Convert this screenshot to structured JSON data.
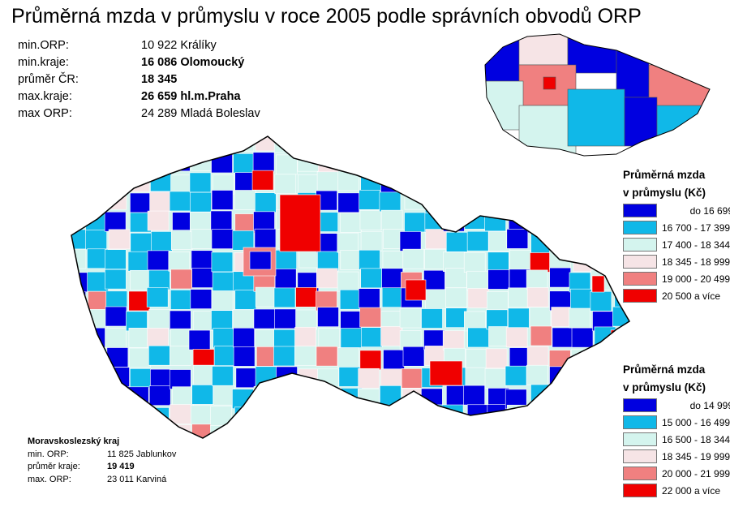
{
  "title": "Průměrná mzda v průmyslu v roce 2005 podle správních obvodů ORP",
  "stats": [
    {
      "label": "min.ORP:",
      "value": "10 922",
      "place": "Králíky",
      "bold": false
    },
    {
      "label": "min.kraje:",
      "value": "16 086",
      "place": "Olomoucký",
      "bold": true
    },
    {
      "label": "průměr ČR:",
      "value": "18 345",
      "place": "",
      "bold": true
    },
    {
      "label": "max.kraje:",
      "value": "26 659",
      "place": "hl.m.Praha",
      "bold": true
    },
    {
      "label": "max ORP:",
      "value": "24 289",
      "place": "Mladá Boleslav",
      "bold": false
    }
  ],
  "legend_kraje": {
    "title1": "Průměrná mzda",
    "title2": "v průmyslu (Kč)",
    "items": [
      {
        "label": "do 16 699",
        "color": "#0000e0"
      },
      {
        "label": "16 700 - 17 399",
        "color": "#10b8e8"
      },
      {
        "label": "17 400 - 18 344",
        "color": "#d4f4ee"
      },
      {
        "label": "18 345 - 18 999",
        "color": "#f6e4e6"
      },
      {
        "label": "19 000 - 20 499",
        "color": "#f08080"
      },
      {
        "label": "20 500 a více",
        "color": "#f00000"
      }
    ]
  },
  "legend_orp": {
    "title1": "Průměrná mzda",
    "title2": "v průmyslu (Kč)",
    "items": [
      {
        "label": "do 14 999",
        "color": "#0000e0"
      },
      {
        "label": "15 000 - 16 499",
        "color": "#10b8e8"
      },
      {
        "label": "16 500 - 18 344",
        "color": "#d4f4ee"
      },
      {
        "label": "18 345 - 19 999",
        "color": "#f6e4e6"
      },
      {
        "label": "20 000 - 21 999",
        "color": "#f08080"
      },
      {
        "label": "22 000 a více",
        "color": "#f00000"
      }
    ]
  },
  "msk": {
    "title": "Moravskoslezský kraj",
    "rows": [
      {
        "label": "min. ORP:",
        "value": "11 825  Jablunkov",
        "bold": false
      },
      {
        "label": "průměr kraje:",
        "value": "19 419",
        "bold": true
      },
      {
        "label": "max. ORP:",
        "value": "23 011  Karviná",
        "bold": false
      }
    ]
  }
}
